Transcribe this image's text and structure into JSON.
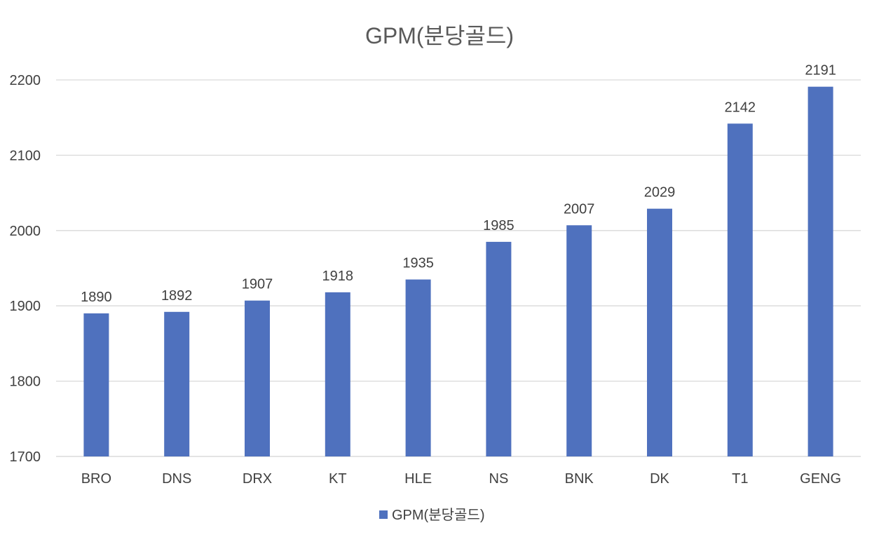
{
  "chart_data": {
    "type": "bar",
    "title": "GPM(분당골드)",
    "xlabel": "",
    "ylabel": "",
    "categories": [
      "BRO",
      "DNS",
      "DRX",
      "KT",
      "HLE",
      "NS",
      "BNK",
      "DK",
      "T1",
      "GENG"
    ],
    "series": [
      {
        "name": "GPM(분당골드)",
        "values": [
          1890,
          1892,
          1907,
          1918,
          1935,
          1985,
          2007,
          2029,
          2142,
          2191
        ]
      }
    ],
    "ylim": [
      1700,
      2200
    ],
    "yticks": [
      1700,
      1800,
      1900,
      2000,
      2100,
      2200
    ],
    "grid": true,
    "legend_position": "bottom",
    "bar_color": "#4f71be",
    "grid_color": "#d9d9d9",
    "text_color": "#404040"
  }
}
